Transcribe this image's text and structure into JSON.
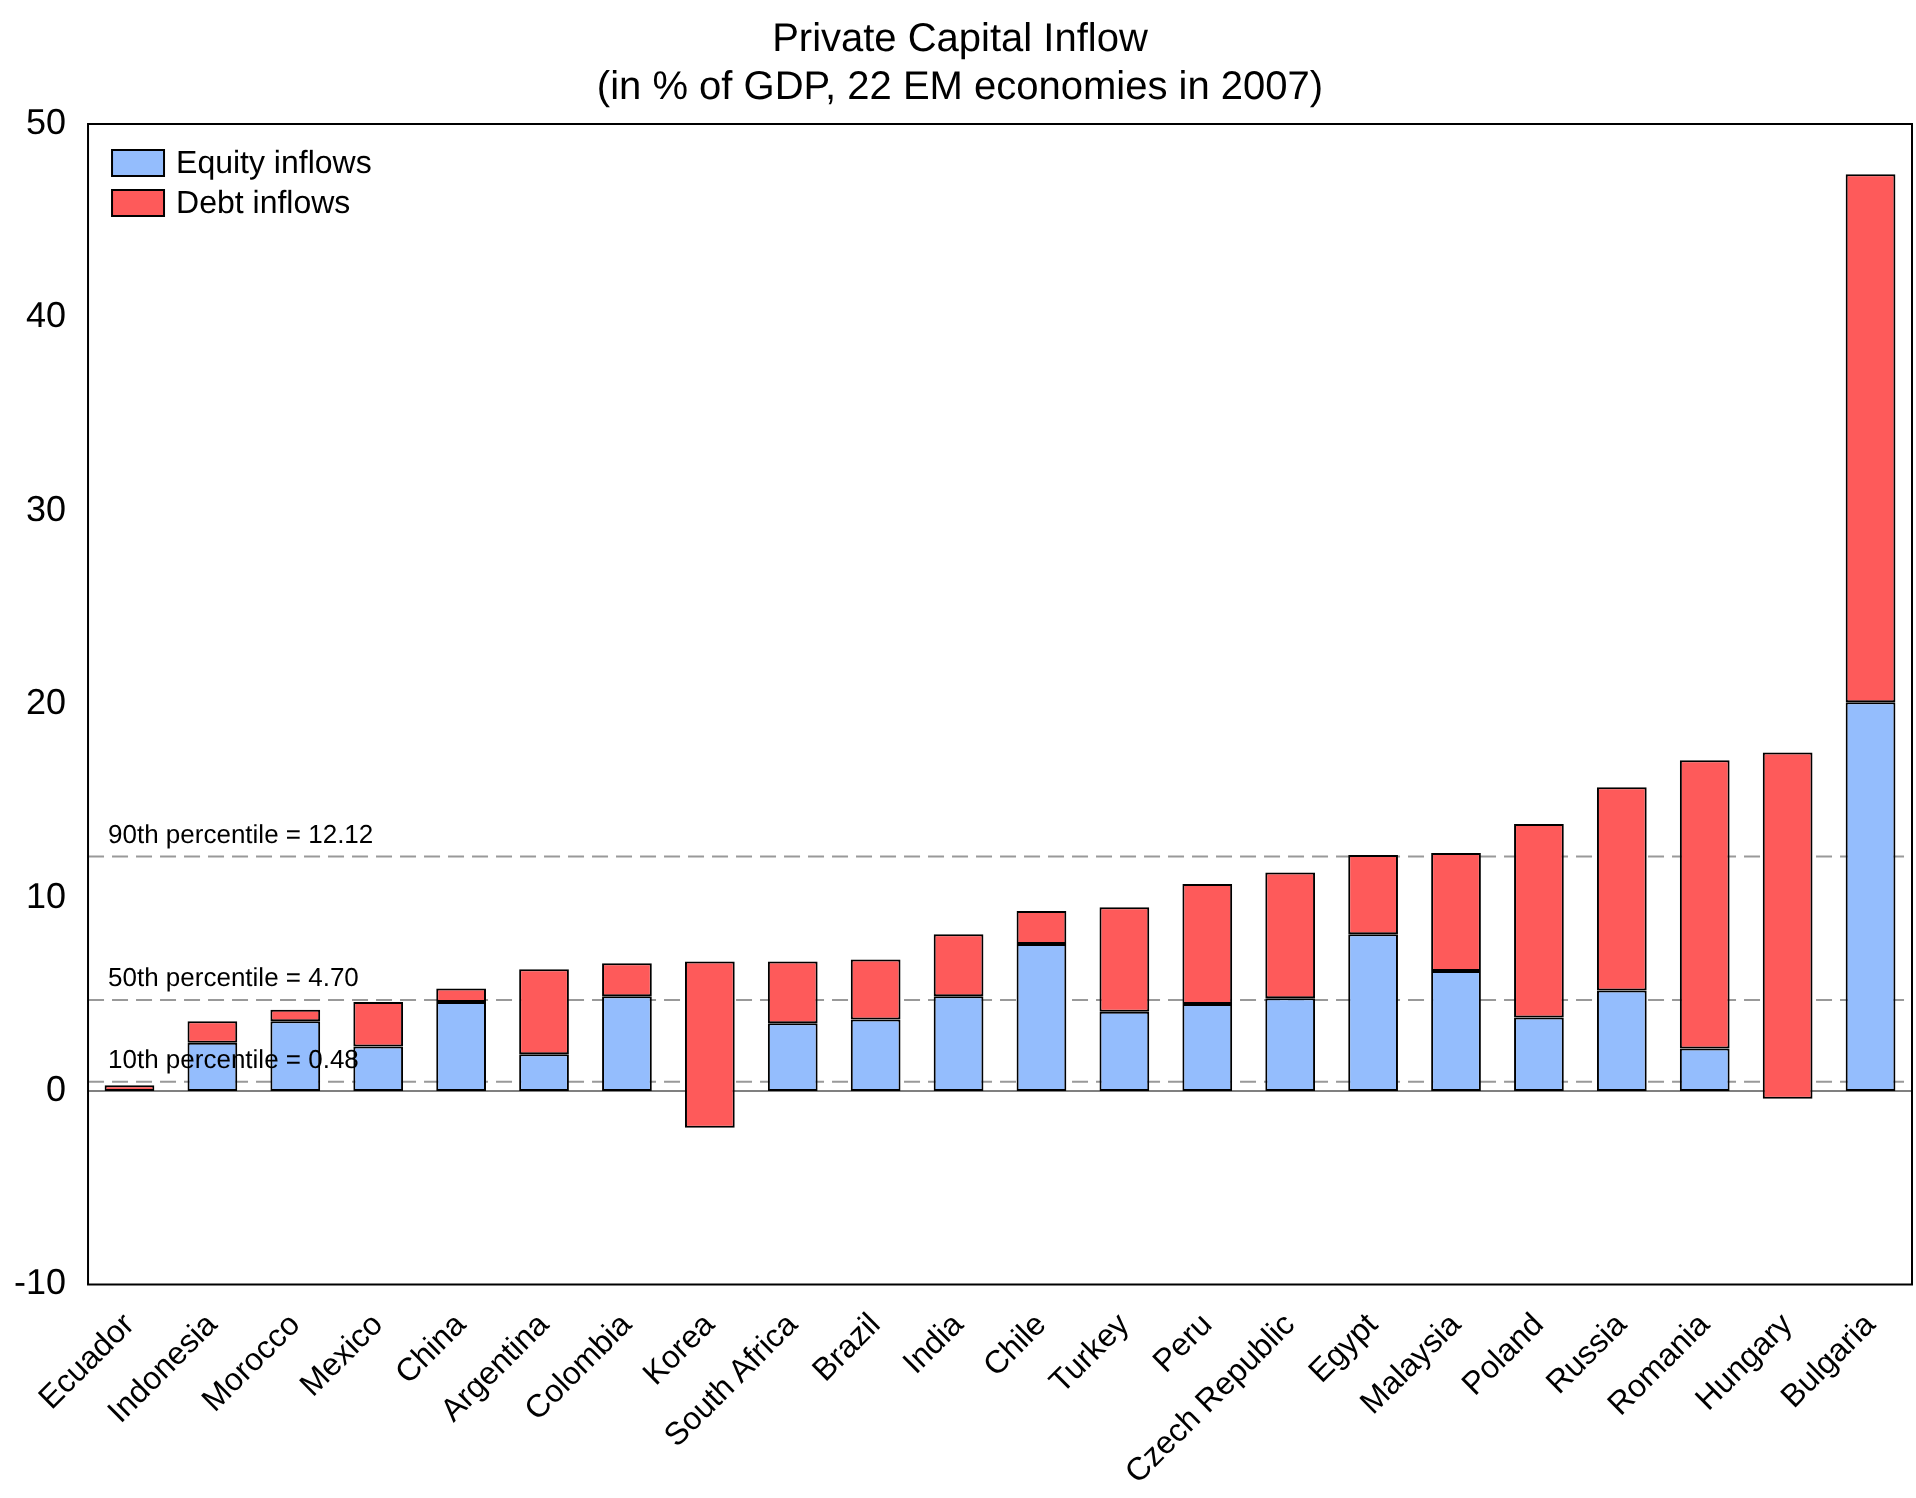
{
  "chart_data": {
    "type": "bar",
    "title": [
      "Private Capital Inflow",
      "(in % of GDP, 22 EM economies in 2007)"
    ],
    "categories": [
      "Ecuador",
      "Indonesia",
      "Morocco",
      "Mexico",
      "China",
      "Argentina",
      "Colombia",
      "Korea",
      "South Africa",
      "Brazil",
      "India",
      "Chile",
      "Turkey",
      "Peru",
      "Czech Republic",
      "Egypt",
      "Malaysia",
      "Poland",
      "Russia",
      "Romania",
      "Hungary",
      "Bulgaria"
    ],
    "stacked": true,
    "series": [
      {
        "name": "Equity inflows",
        "color": "#94bdfd",
        "values": [
          null,
          2.5,
          3.6,
          2.3,
          4.6,
          1.9,
          4.9,
          null,
          3.5,
          3.7,
          4.9,
          7.6,
          4.1,
          4.5,
          4.8,
          8.1,
          6.2,
          3.8,
          5.2,
          2.2,
          null,
          20.1
        ]
      },
      {
        "name": "Debt inflows",
        "color": "#fe5a5a",
        "values": [
          0.3,
          1.1,
          0.6,
          2.3,
          0.7,
          4.4,
          1.7,
          8.6,
          3.2,
          3.1,
          3.2,
          1.7,
          5.4,
          6.2,
          6.5,
          4.1,
          6.1,
          10.0,
          10.5,
          14.9,
          17.9,
          27.3
        ],
        "base": [
          0,
          2.5,
          3.6,
          2.3,
          4.6,
          1.9,
          4.9,
          -1.9,
          3.5,
          3.7,
          4.9,
          7.6,
          4.1,
          4.5,
          4.8,
          8.1,
          6.2,
          3.8,
          5.2,
          2.2,
          -0.4,
          20.1
        ]
      }
    ],
    "ylim": [
      -10,
      50
    ],
    "yticks": [
      -10,
      0,
      10,
      20,
      30,
      40,
      50
    ],
    "legend": "top left",
    "ref_lines": [
      {
        "axis": "y",
        "value": 12.12,
        "label": "90th percentile = 12.12",
        "color": "#999999",
        "line_style": "dashed"
      },
      {
        "axis": "y",
        "value": 4.7,
        "label": "50th percentile = 4.70",
        "color": "#999999",
        "line_style": "dashed"
      },
      {
        "axis": "y",
        "value": 0.48,
        "label": "10th percentile = 0.48",
        "color": "#999999",
        "line_style": "dashed"
      },
      {
        "axis": "y",
        "value": 0,
        "color": "#808080",
        "line_style": "solid"
      }
    ]
  }
}
